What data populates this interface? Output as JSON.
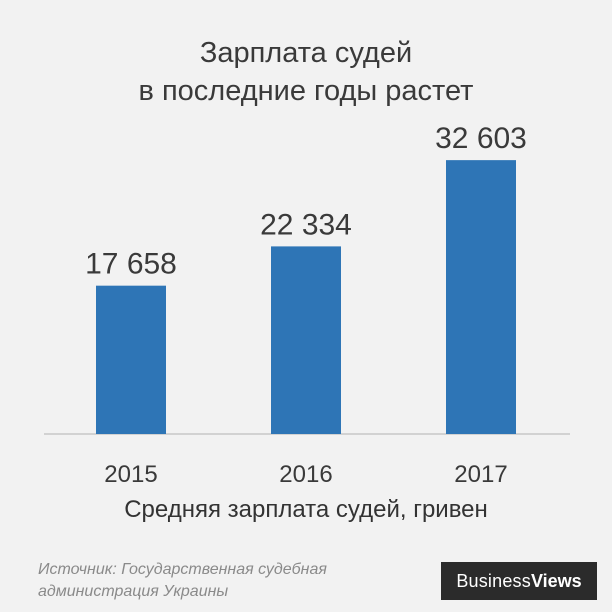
{
  "chart_data": {
    "type": "bar",
    "title_line1": "Зарплата судей",
    "title_line2": "в последние годы растет",
    "categories": [
      "2015",
      "2016",
      "2017"
    ],
    "values": [
      17658,
      22334,
      32603
    ],
    "value_labels": [
      "17 658",
      "22 334",
      "32 603"
    ],
    "xlabel": "Средняя зарплата судей, гривен",
    "ylim": [
      0,
      35000
    ],
    "grid": false,
    "bar_color": "#2e75b6"
  },
  "source": {
    "line1": "Источник: Государственная судебная",
    "line2": "администрация Украины"
  },
  "brand": {
    "part1": "Business",
    "part2": "Views"
  }
}
